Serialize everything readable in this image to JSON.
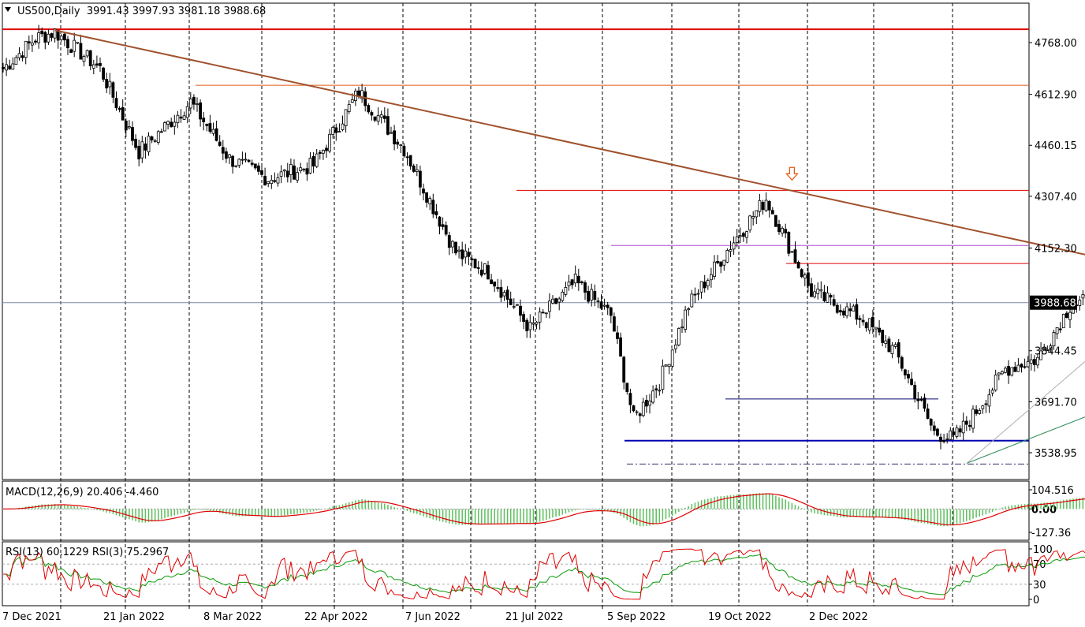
{
  "chart_data": {
    "type": "candlestick",
    "symbol": "US500",
    "timeframe": "Daily",
    "header_text": "US500,Daily  3991.43 3997.93 3981.18 3988.68",
    "ohlc_last": {
      "open": 3991.43,
      "high": 3997.93,
      "low": 3981.18,
      "close": 3988.68
    },
    "price_axis": {
      "ticks": [
        "4768.00",
        "4612.90",
        "4460.15",
        "4307.40",
        "4152.30",
        "3844.45",
        "3691.70",
        "3538.95"
      ],
      "tick_values": [
        4768.0,
        4612.9,
        4460.15,
        4307.4,
        4152.3,
        3844.45,
        3691.7,
        3538.95
      ],
      "current_price_label": "3988.68",
      "range": [
        3470,
        4830
      ]
    },
    "time_axis": {
      "labels": [
        "7 Dec 2021",
        "21 Jan 2022",
        "8 Mar 2022",
        "22 Apr 2022",
        "7 Jun 2022",
        "21 Jul 2022",
        "5 Sep 2022",
        "19 Oct 2022",
        "2 Dec 2022"
      ],
      "bar_count": 280
    },
    "price_anchors": [
      [
        0,
        4690
      ],
      [
        10,
        4780
      ],
      [
        16,
        4800
      ],
      [
        30,
        4690
      ],
      [
        42,
        4440
      ],
      [
        58,
        4590
      ],
      [
        70,
        4420
      ],
      [
        82,
        4360
      ],
      [
        96,
        4400
      ],
      [
        110,
        4620
      ],
      [
        124,
        4450
      ],
      [
        140,
        4140
      ],
      [
        150,
        4080
      ],
      [
        163,
        3910
      ],
      [
        177,
        4050
      ],
      [
        188,
        3950
      ],
      [
        195,
        3640
      ],
      [
        203,
        3750
      ],
      [
        212,
        3980
      ],
      [
        225,
        4160
      ],
      [
        236,
        4300
      ],
      [
        250,
        4020
      ],
      [
        266,
        3940
      ],
      [
        276,
        3840
      ],
      [
        288,
        3600
      ],
      [
        294,
        3580
      ],
      [
        300,
        3650
      ],
      [
        310,
        3790
      ],
      [
        320,
        3820
      ],
      [
        330,
        3980
      ],
      [
        342,
        4010
      ],
      [
        354,
        4090
      ],
      [
        362,
        3950
      ],
      [
        372,
        3830
      ],
      [
        382,
        3850
      ],
      [
        388,
        3990
      ],
      [
        392,
        3988.68
      ]
    ],
    "horizontal_levels": [
      {
        "price": 4808,
        "color": "#e00000",
        "style": "solid"
      },
      {
        "price": 4640,
        "color": "#e05a14",
        "style": "solid"
      },
      {
        "price": 4325,
        "color": "#e00000",
        "style": "solid"
      },
      {
        "price": 4160,
        "color": "#b44fd4",
        "style": "solid"
      },
      {
        "price": 4106,
        "color": "#e00000",
        "style": "solid"
      },
      {
        "price": 3988.68,
        "color": "#7d8aa6",
        "style": "solid"
      },
      {
        "price": 3700,
        "color": "#0a0a70",
        "style": "solid"
      },
      {
        "price": 3575,
        "color": "#0000b4",
        "style": "solid"
      },
      {
        "price": 3505,
        "color": "#3a2a6a",
        "style": "dashdot"
      }
    ],
    "trendlines": [
      {
        "from": [
          16,
          4805
        ],
        "to": [
          408,
          3978
        ],
        "color": "#a0522d"
      },
      {
        "from": [
          298,
          3507
        ],
        "to": [
          420,
          3970
        ],
        "color": "#2e8b57"
      },
      {
        "from": [
          298,
          3507
        ],
        "to": [
          362,
          4040
        ],
        "color": "#b0b0b0"
      }
    ],
    "annotations": [
      {
        "type": "arrow-down",
        "at": [
          244,
          4375
        ],
        "color": "#e05a14"
      },
      {
        "type": "arrow-down",
        "at": [
          392,
          4040
        ],
        "color": "#e00000"
      },
      {
        "type": "arrow-up",
        "at": [
          375,
          3725
        ],
        "color": "#1e3cc8"
      }
    ],
    "highlight_box": {
      "from": [
        367,
        3900
      ],
      "to": [
        391,
        3790
      ],
      "color": "#ffff00"
    },
    "macd": {
      "label": "MACD(12,26,9) 20.406 -4.460",
      "params": "12,26,9",
      "main": 20.406,
      "signal": -4.46,
      "ticks": [
        "104.516",
        "0.00",
        "-127.36"
      ],
      "tick_values": [
        104.516,
        0.0,
        -127.36
      ],
      "histogram_color": "#5fbf5f",
      "signal_color": "#e00000"
    },
    "rsi": {
      "label": "RSI(13) 60.1229  RSI(3) 75.2967",
      "rsi13": 60.1229,
      "rsi3": 75.2967,
      "ticks": [
        "100",
        "70",
        "30",
        "0"
      ],
      "tick_values": [
        100,
        70,
        30,
        0
      ],
      "rsi13_color": "#0a9a0a",
      "rsi3_color": "#e00000"
    },
    "colors": {
      "up_candle": "#ffffff",
      "down_candle": "#000000",
      "wick": "#000000",
      "vertical_grid": "#000000"
    },
    "grid": "vertical dashed"
  }
}
